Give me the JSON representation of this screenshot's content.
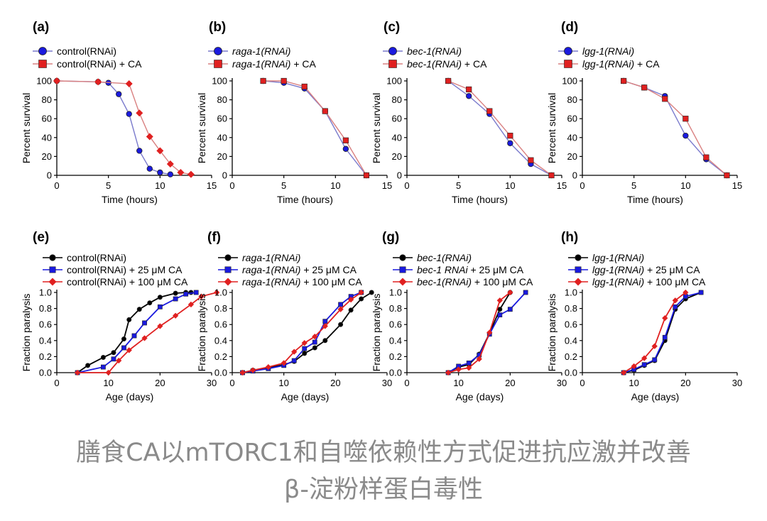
{
  "caption": {
    "line1": "膳食CA以mTORC1和自噬依赖性方式促进抗应激并改善",
    "line2": "β-淀粉样蛋白毒性"
  },
  "colors": {
    "blue": "#1a1adf",
    "red": "#e02020",
    "black": "#000000",
    "survival_blue_line": "#7a7acc",
    "survival_red_line": "#d98080"
  },
  "chart_data": [
    {
      "panel": "(a)",
      "type": "line",
      "xlabel": "Time (hours)",
      "ylabel": "Percent survival",
      "xlim": [
        0,
        15
      ],
      "ylim": [
        0,
        100
      ],
      "xticks": [
        0,
        5,
        10,
        15
      ],
      "yticks": [
        0,
        20,
        40,
        60,
        80,
        100
      ],
      "legend_position": "top-left",
      "series": [
        {
          "name": "control(RNAi)",
          "color": "blue",
          "marker": "circle",
          "x": [
            0,
            4,
            5,
            6,
            7,
            8,
            9,
            10,
            11
          ],
          "y": [
            100,
            99,
            98,
            86,
            65,
            26,
            7,
            3,
            1
          ]
        },
        {
          "name": "control(RNAi) + CA",
          "color": "red",
          "marker": "diamond-square",
          "x": [
            0,
            4,
            7,
            8,
            9,
            10,
            11,
            12,
            13
          ],
          "y": [
            100,
            99,
            97,
            66,
            41,
            26,
            12,
            3,
            1
          ]
        }
      ]
    },
    {
      "panel": "(b)",
      "type": "line",
      "xlabel": "Time (hours)",
      "ylabel": "Percent survival",
      "xlim": [
        0,
        15
      ],
      "ylim": [
        0,
        100
      ],
      "xticks": [
        0,
        5,
        10,
        15
      ],
      "yticks": [
        0,
        20,
        40,
        60,
        80,
        100
      ],
      "legend_position": "top-left",
      "series": [
        {
          "name": "raga-1(RNAi)",
          "color": "blue",
          "marker": "circle",
          "x": [
            3,
            5,
            7,
            9,
            11,
            13
          ],
          "y": [
            100,
            98,
            92,
            68,
            28,
            0
          ]
        },
        {
          "name": "raga-1(RNAi) + CA",
          "color": "red",
          "marker": "square",
          "x": [
            3,
            5,
            7,
            9,
            11,
            13
          ],
          "y": [
            100,
            100,
            94,
            68,
            37,
            0
          ]
        }
      ]
    },
    {
      "panel": "(c)",
      "type": "line",
      "xlabel": "Time (hours)",
      "ylabel": "Percent survival",
      "xlim": [
        0,
        15
      ],
      "ylim": [
        0,
        100
      ],
      "xticks": [
        0,
        5,
        10,
        15
      ],
      "yticks": [
        0,
        20,
        40,
        60,
        80,
        100
      ],
      "legend_position": "top-left",
      "series": [
        {
          "name": "bec-1(RNAi)",
          "color": "blue",
          "marker": "circle",
          "x": [
            4,
            6,
            8,
            10,
            12,
            14
          ],
          "y": [
            100,
            84,
            65,
            34,
            12,
            0
          ]
        },
        {
          "name": "bec-1(RNAi) + CA",
          "color": "red",
          "marker": "square",
          "x": [
            4,
            6,
            8,
            10,
            12,
            14
          ],
          "y": [
            100,
            91,
            68,
            42,
            16,
            0
          ]
        }
      ]
    },
    {
      "panel": "(d)",
      "type": "line",
      "xlabel": "Time (hours)",
      "ylabel": "Percent survival",
      "xlim": [
        0,
        15
      ],
      "ylim": [
        0,
        100
      ],
      "xticks": [
        0,
        5,
        10,
        15
      ],
      "yticks": [
        0,
        20,
        40,
        60,
        80,
        100
      ],
      "legend_position": "top-left",
      "series": [
        {
          "name": "lgg-1(RNAi)",
          "color": "blue",
          "marker": "circle",
          "x": [
            4,
            6,
            8,
            10,
            12,
            14
          ],
          "y": [
            100,
            93,
            84,
            42,
            17,
            0
          ]
        },
        {
          "name": "lgg-1(RNAi) + CA",
          "color": "red",
          "marker": "square",
          "x": [
            4,
            6,
            8,
            10,
            12,
            14
          ],
          "y": [
            100,
            93,
            81,
            60,
            19,
            0
          ]
        }
      ]
    },
    {
      "panel": "(e)",
      "type": "line",
      "xlabel": "Age (days)",
      "ylabel": "Fraction paralysis",
      "xlim": [
        0,
        30
      ],
      "ylim": [
        0,
        1.0
      ],
      "xticks": [
        0,
        10,
        20,
        30
      ],
      "yticks": [
        0.0,
        0.2,
        0.4,
        0.6,
        0.8,
        1.0
      ],
      "legend_position": "top-left",
      "series": [
        {
          "name": "control(RNAi)",
          "color": "black",
          "marker": "circle",
          "x": [
            4,
            6,
            9,
            11,
            13,
            14,
            16,
            18,
            20,
            23,
            25,
            26
          ],
          "y": [
            0.0,
            0.09,
            0.19,
            0.25,
            0.42,
            0.66,
            0.79,
            0.87,
            0.94,
            0.99,
            1.0,
            1.0
          ]
        },
        {
          "name": "control(RNAi) + 25 μM CA",
          "color": "blue",
          "marker": "square",
          "x": [
            4,
            9,
            11,
            13,
            15,
            17,
            20,
            23,
            25,
            27
          ],
          "y": [
            0.0,
            0.07,
            0.17,
            0.31,
            0.46,
            0.62,
            0.82,
            0.92,
            0.98,
            1.0
          ]
        },
        {
          "name": "control(RNAi) + 100 μM CA",
          "color": "red",
          "marker": "diamond",
          "x": [
            4,
            10,
            12,
            14,
            17,
            20,
            23,
            26,
            28,
            31
          ],
          "y": [
            0.0,
            0.0,
            0.15,
            0.28,
            0.43,
            0.58,
            0.71,
            0.85,
            0.95,
            1.0
          ]
        }
      ]
    },
    {
      "panel": "(f)",
      "type": "line",
      "xlabel": "Age (days)",
      "ylabel": "Fraction paralysis",
      "xlim": [
        0,
        30
      ],
      "ylim": [
        0,
        1.0
      ],
      "xticks": [
        0,
        10,
        20,
        30
      ],
      "yticks": [
        0.0,
        0.2,
        0.4,
        0.6,
        0.8,
        1.0
      ],
      "legend_position": "top-left",
      "series": [
        {
          "name": "raga-1(RNAi)",
          "color": "black",
          "marker": "circle",
          "x": [
            2,
            4,
            7,
            10,
            12,
            14,
            16,
            18,
            21,
            23,
            25,
            27
          ],
          "y": [
            0.0,
            0.03,
            0.06,
            0.1,
            0.14,
            0.24,
            0.31,
            0.4,
            0.6,
            0.78,
            0.92,
            1.0
          ]
        },
        {
          "name": "raga-1(RNAi) +  25 μM CA",
          "color": "blue",
          "marker": "square",
          "x": [
            2,
            4,
            7,
            10,
            12,
            14,
            16,
            18,
            21,
            23,
            25
          ],
          "y": [
            0.0,
            0.02,
            0.05,
            0.09,
            0.15,
            0.3,
            0.38,
            0.64,
            0.85,
            0.95,
            1.0
          ]
        },
        {
          "name": "raga-1(RNAi) + 100 μM CA",
          "color": "red",
          "marker": "diamond",
          "x": [
            2,
            4,
            7,
            10,
            12,
            14,
            16,
            18,
            21,
            23,
            25
          ],
          "y": [
            0.0,
            0.03,
            0.07,
            0.12,
            0.26,
            0.37,
            0.45,
            0.58,
            0.79,
            0.91,
            1.0
          ]
        }
      ]
    },
    {
      "panel": "(g)",
      "type": "line",
      "xlabel": "Age (days)",
      "ylabel": "Fraction paralysis",
      "xlim": [
        0,
        30
      ],
      "ylim": [
        0,
        1.0
      ],
      "xticks": [
        0,
        10,
        20,
        30
      ],
      "yticks": [
        0.0,
        0.2,
        0.4,
        0.6,
        0.8,
        1.0
      ],
      "legend_position": "top-left",
      "series": [
        {
          "name": "bec-1(RNAi)",
          "color": "black",
          "marker": "circle",
          "x": [
            8,
            10,
            12,
            14,
            16,
            18,
            20
          ],
          "y": [
            0.0,
            0.07,
            0.1,
            0.23,
            0.49,
            0.79,
            1.0
          ]
        },
        {
          "name": "bec-1 RNAi +  25 μM CA",
          "color": "blue",
          "marker": "square",
          "x": [
            8,
            10,
            12,
            14,
            16,
            18,
            20,
            23
          ],
          "y": [
            0.0,
            0.08,
            0.12,
            0.22,
            0.48,
            0.72,
            0.79,
            1.0
          ]
        },
        {
          "name": "bec-1(RNAi) + 100 μM CA",
          "color": "red",
          "marker": "diamond",
          "x": [
            8,
            10,
            12,
            14,
            16,
            18,
            20
          ],
          "y": [
            0.0,
            0.04,
            0.06,
            0.17,
            0.5,
            0.9,
            1.0
          ]
        }
      ]
    },
    {
      "panel": "(h)",
      "type": "line",
      "xlabel": "Age (days)",
      "ylabel": "Fraction paralysis",
      "xlim": [
        0,
        30
      ],
      "ylim": [
        0,
        1.0
      ],
      "xticks": [
        0,
        10,
        20,
        30
      ],
      "yticks": [
        0.0,
        0.2,
        0.4,
        0.6,
        0.8,
        1.0
      ],
      "legend_position": "top-left",
      "series": [
        {
          "name": "lgg-1(RNAi)",
          "color": "black",
          "marker": "circle",
          "x": [
            8,
            10,
            12,
            14,
            16,
            18,
            20,
            23
          ],
          "y": [
            0.0,
            0.03,
            0.09,
            0.15,
            0.4,
            0.79,
            0.92,
            1.0
          ]
        },
        {
          "name": "lgg-1(RNAi) +  25 μM CA",
          "color": "blue",
          "marker": "square",
          "x": [
            8,
            10,
            12,
            14,
            16,
            18,
            20,
            23
          ],
          "y": [
            0.0,
            0.04,
            0.1,
            0.16,
            0.44,
            0.82,
            0.95,
            1.0
          ]
        },
        {
          "name": "lgg-1(RNAi) + 100 μM CA",
          "color": "red",
          "marker": "diamond",
          "x": [
            8,
            10,
            12,
            14,
            16,
            18,
            20
          ],
          "y": [
            0.0,
            0.08,
            0.18,
            0.33,
            0.68,
            0.9,
            1.0
          ]
        }
      ]
    }
  ]
}
